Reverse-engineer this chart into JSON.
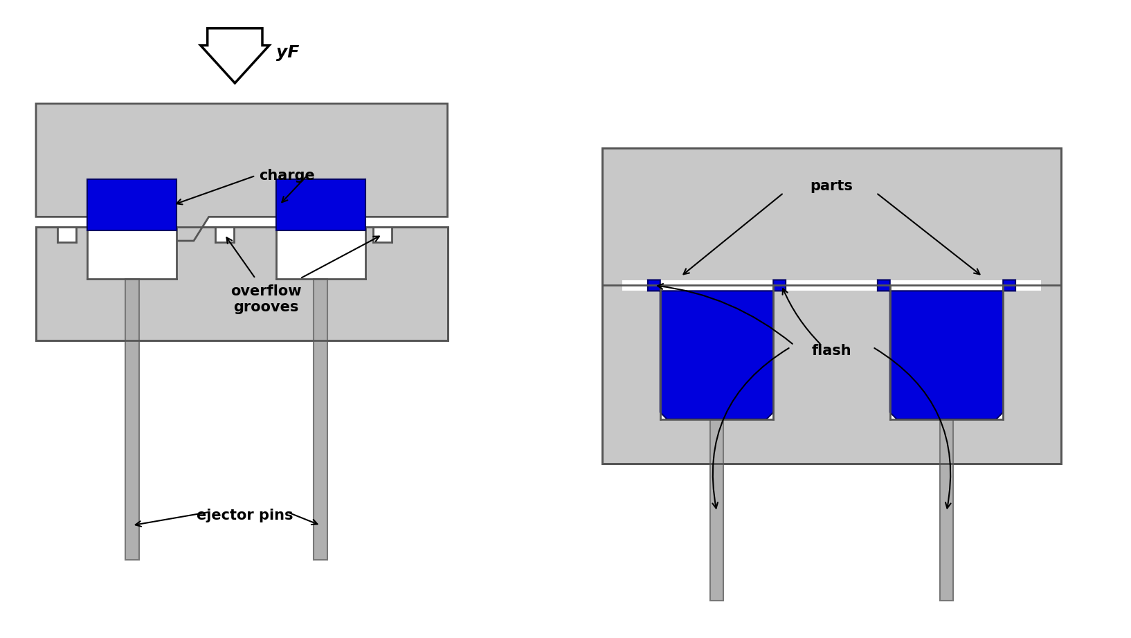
{
  "bg_color": "#ffffff",
  "mold_color": "#c8c8c8",
  "mold_edge_color": "#555555",
  "mold_lw": 2.0,
  "blue_color": "#0000dd",
  "blue_edge": "#000066",
  "pin_color": "#b0b0b0",
  "pin_edge": "#777777",
  "pin_lw": 1.5,
  "arrow_color": "#000000",
  "text_color": "#000000",
  "label_charge": "charge",
  "label_overflow": "overflow\ngrooves",
  "label_ejector": "ejector pins",
  "label_parts": "parts",
  "label_flash": "flash",
  "label_force": "yF",
  "fontsize_label": 15
}
